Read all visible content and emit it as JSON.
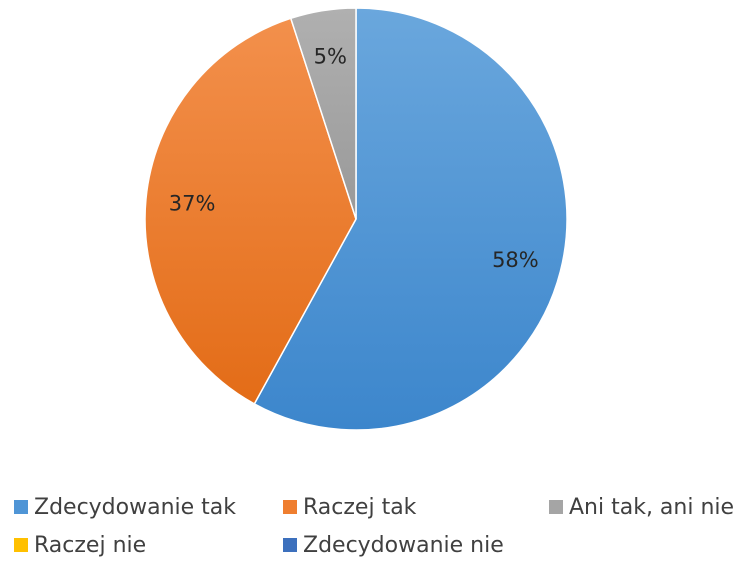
{
  "chart_data": {
    "type": "pie",
    "title": "",
    "slices": [
      {
        "name": "Zdecydowanie tak",
        "value": 58,
        "label": "58%",
        "color": "#4f95d6"
      },
      {
        "name": "Raczej tak",
        "value": 37,
        "label": "37%",
        "color": "#ef7e2f"
      },
      {
        "name": "Ani tak, ani nie",
        "value": 5,
        "label": "5%",
        "color": "#a5a5a5"
      },
      {
        "name": "Raczej nie",
        "value": 0,
        "label": "",
        "color": "#ffc000"
      },
      {
        "name": "Zdecydowanie nie",
        "value": 0,
        "label": "",
        "color": "#3c70bd"
      }
    ],
    "legend_position": "bottom"
  }
}
